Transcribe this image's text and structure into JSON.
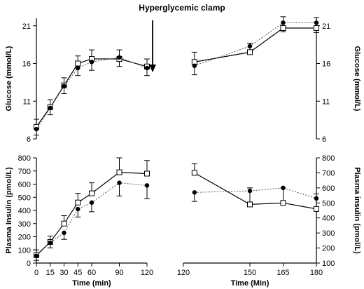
{
  "figure": {
    "title": "Hyperglycemic clamp"
  },
  "chart_data": [
    {
      "id": "glucose-left",
      "type": "line",
      "ylabel": "Glucose (mmol/L)",
      "xlabel": "",
      "xlim": [
        0,
        120
      ],
      "ylim": [
        6,
        22
      ],
      "x_ticks": [],
      "y_ticks": [
        6,
        11,
        16,
        21
      ],
      "series": [
        {
          "marker": "square-open",
          "line": "solid",
          "x": [
            0,
            15,
            30,
            45,
            60,
            90,
            120
          ],
          "y": [
            7.6,
            10.2,
            13.1,
            16.0,
            16.6,
            16.6,
            15.6
          ],
          "err": [
            1.0,
            1.0,
            1.0,
            1.0,
            1.2,
            1.2,
            1.0
          ]
        },
        {
          "marker": "circle-filled",
          "line": "dotted",
          "x": [
            0,
            15,
            30,
            45,
            60,
            90,
            120
          ],
          "y": [
            7.3,
            10.1,
            13.0,
            15.4,
            16.2,
            16.8,
            15.4
          ],
          "err": [
            0.8,
            0.9,
            1.0,
            1.0,
            1.1,
            1.2,
            1.0
          ]
        }
      ]
    },
    {
      "id": "glucose-right",
      "type": "line",
      "ylabel": "Glucose (mmol/L)",
      "xlabel": "",
      "xlim": [
        120,
        180
      ],
      "ylim": [
        6,
        22
      ],
      "x_ticks": [],
      "y_ticks": [
        6,
        11,
        16,
        21
      ],
      "series": [
        {
          "marker": "square-open",
          "line": "solid",
          "x": [
            125,
            150,
            165,
            180
          ],
          "y": [
            16.2,
            17.5,
            20.7,
            20.7
          ],
          "err": [
            1.3,
            1.2,
            1.5,
            1.4
          ]
        },
        {
          "marker": "circle-filled",
          "line": "dotted",
          "x": [
            125,
            150,
            165,
            180
          ],
          "y": [
            15.7,
            18.3,
            21.4,
            21.4
          ],
          "err": [
            1.2,
            1.0,
            1.2,
            1.3
          ]
        }
      ]
    },
    {
      "id": "insulin-left",
      "type": "line",
      "ylabel": "Plasma Insulin (pmol/L)",
      "xlabel": "Time (min)",
      "xlim": [
        0,
        120
      ],
      "ylim": [
        0,
        800
      ],
      "x_ticks": [
        0,
        15,
        30,
        45,
        60,
        90,
        120
      ],
      "y_ticks": [
        0,
        100,
        200,
        300,
        400,
        500,
        600,
        700,
        800
      ],
      "series": [
        {
          "marker": "square-open",
          "line": "solid",
          "x": [
            0,
            15,
            30,
            45,
            60,
            90,
            120
          ],
          "y": [
            60,
            160,
            300,
            460,
            530,
            690,
            680
          ],
          "err": [
            40,
            45,
            60,
            70,
            80,
            110,
            100
          ]
        },
        {
          "marker": "circle-filled",
          "line": "dotted",
          "x": [
            0,
            15,
            30,
            45,
            60,
            90,
            120
          ],
          "y": [
            55,
            155,
            230,
            410,
            460,
            610,
            590
          ],
          "err": [
            35,
            40,
            50,
            60,
            70,
            100,
            100
          ]
        }
      ]
    },
    {
      "id": "insulin-right",
      "type": "line",
      "ylabel": "Plasma insulin (pmol/L)",
      "xlabel": "Time (Min)",
      "xlim": [
        120,
        180
      ],
      "ylim": [
        100,
        800
      ],
      "x_ticks": [
        120,
        150,
        165,
        180
      ],
      "y_ticks": [
        100,
        200,
        300,
        400,
        500,
        600,
        700,
        800
      ],
      "series": [
        {
          "marker": "square-open",
          "line": "solid",
          "x": [
            125,
            150,
            165,
            180
          ],
          "y": [
            700,
            490,
            500,
            460
          ],
          "err": [
            60,
            110,
            100,
            100
          ]
        },
        {
          "marker": "circle-filled",
          "line": "dotted",
          "x": [
            125,
            150,
            165,
            180
          ],
          "y": [
            570,
            580,
            600,
            530
          ],
          "err": [
            60,
            80,
            90,
            80
          ]
        }
      ]
    }
  ]
}
